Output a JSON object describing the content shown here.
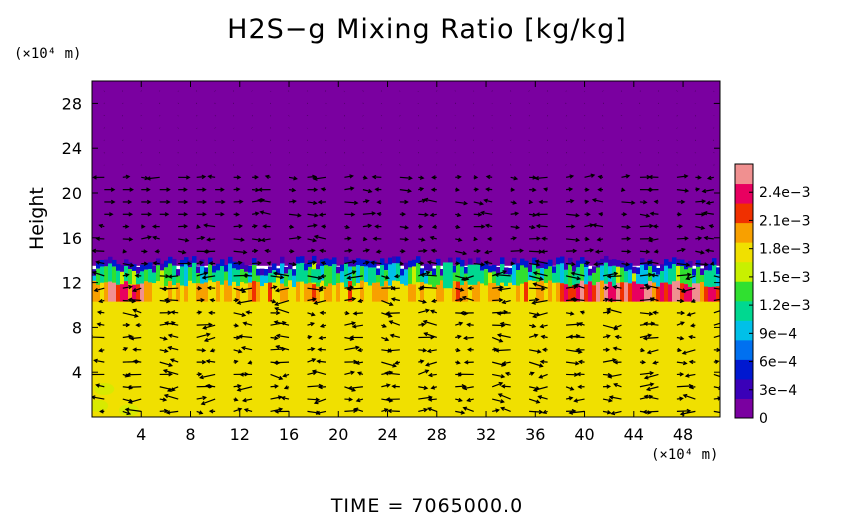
{
  "chart_data": {
    "type": "heatmap",
    "title": "H2S−g Mixing Ratio [kg/kg]",
    "xlabel_unit": "(×10⁴ m)",
    "ylabel": "Height",
    "ylabel_unit": "(×10⁴ m)",
    "xlim": [
      0,
      51
    ],
    "ylim": [
      0,
      30
    ],
    "x_ticks": [
      4,
      8,
      12,
      16,
      20,
      24,
      28,
      32,
      36,
      40,
      44,
      48
    ],
    "y_ticks": [
      4,
      8,
      12,
      16,
      20,
      24,
      28
    ],
    "colorbar": {
      "range": [
        0,
        0.0027
      ],
      "tick_values": [
        0,
        0.0003,
        0.0006,
        0.0009,
        0.0012,
        0.0015,
        0.0018,
        0.0021,
        0.0024
      ],
      "tick_labels": [
        "0",
        "3e−4",
        "6e−4",
        "9e−4",
        "1.2e−3",
        "1.5e−3",
        "1.8e−3",
        "2.1e−3",
        "2.4e−3"
      ],
      "colors": [
        "#7a00a0",
        "#3a00b8",
        "#0018d0",
        "#0070f0",
        "#00c0e8",
        "#00d890",
        "#30e030",
        "#c8f000",
        "#f0e000",
        "#f8a000",
        "#f03000",
        "#e80060",
        "#f09090"
      ]
    },
    "field": {
      "upper_layer_value": 0,
      "upper_layer_height_range": [
        13.5,
        30
      ],
      "interface_height_range": [
        12.5,
        13.8
      ],
      "interface_values": [
        0.0003,
        0.0012
      ],
      "lower_layer_value": 0.0017,
      "lower_layer_height_range": [
        0,
        11.5
      ],
      "enriched_band_height": 11,
      "enriched_band_value": 0.0022
    },
    "vectors": "wind field arrows over entire domain"
  },
  "time_label": "TIME  =  7065000.0",
  "colors": {
    "background": "#ffffff",
    "upper_layer": "#7a00a0",
    "lower_layer": "#d8f020"
  }
}
